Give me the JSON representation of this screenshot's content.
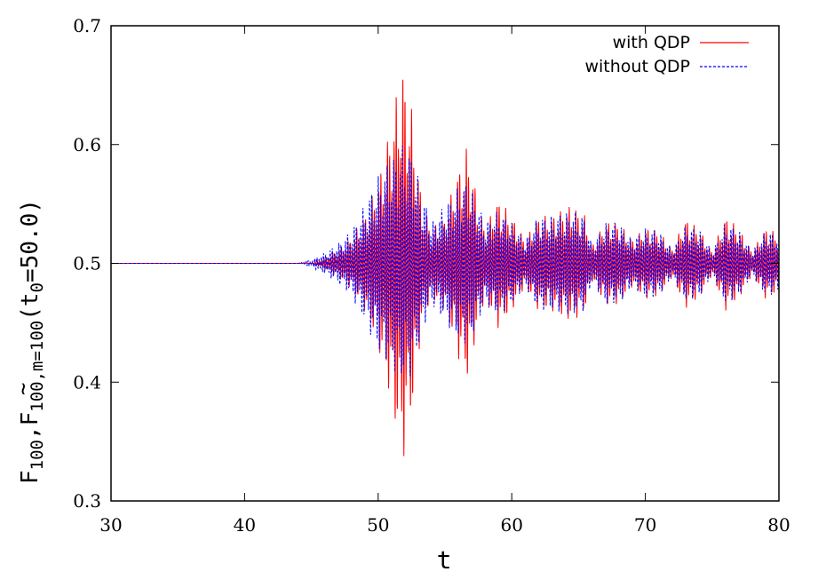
{
  "chart_data": {
    "type": "line",
    "title": "",
    "xlabel": "t",
    "ylabel_parts": {
      "main": "F",
      "sub1": "100",
      "comma": ",",
      "tilde": "~",
      "main2": "F",
      "sub2": "100,m=100",
      "paren_open": "(t",
      "sub3": "0",
      "rest": "=50.0)"
    },
    "xlim": [
      30,
      80
    ],
    "ylim": [
      0.3,
      0.7
    ],
    "x_ticks": [
      30,
      40,
      50,
      60,
      70,
      80
    ],
    "x_tick_labels": [
      "30",
      "40",
      "50",
      "60",
      "70",
      "80"
    ],
    "y_ticks": [
      0.3,
      0.4,
      0.5,
      0.6,
      0.7
    ],
    "y_tick_labels": [
      "0.3",
      "0.4",
      "0.5",
      "0.6",
      "0.7"
    ],
    "grid": false,
    "legend_position": "top-right",
    "series": [
      {
        "name": "with QDP",
        "color": "#ff0000",
        "style": "solid",
        "baseline": 0.5,
        "envelope": {
          "t": [
            30,
            45,
            46,
            47,
            48,
            49,
            50,
            51,
            51.8,
            52.5,
            53.3,
            54,
            55,
            56,
            56.7,
            57.5,
            58,
            59,
            60,
            61,
            62,
            63,
            64.5,
            65.5,
            66,
            67,
            68,
            69,
            70,
            71,
            72,
            73,
            74,
            75,
            76,
            77,
            78,
            79,
            80
          ],
          "amp": [
            0,
            0,
            0.005,
            0.012,
            0.022,
            0.04,
            0.07,
            0.12,
            0.17,
            0.13,
            0.05,
            0.03,
            0.04,
            0.08,
            0.1,
            0.05,
            0.03,
            0.055,
            0.04,
            0.02,
            0.04,
            0.04,
            0.05,
            0.04,
            0.015,
            0.035,
            0.035,
            0.02,
            0.03,
            0.028,
            0.012,
            0.038,
            0.03,
            0.01,
            0.04,
            0.03,
            0.01,
            0.03,
            0.025
          ]
        }
      },
      {
        "name": "without QDP",
        "color": "#0000ff",
        "style": "dashed",
        "baseline": 0.5,
        "envelope": {
          "t": [
            30,
            44,
            45,
            46,
            47,
            48,
            49,
            50,
            51,
            51.8,
            52.5,
            53.3,
            54,
            55,
            56,
            56.7,
            57.5,
            58,
            59,
            60,
            61,
            62,
            63,
            64.5,
            65.5,
            66,
            67,
            68,
            69,
            70,
            71,
            72,
            73,
            74,
            75,
            76,
            77,
            78,
            79,
            80
          ],
          "amp": [
            0,
            0,
            0.003,
            0.009,
            0.017,
            0.028,
            0.05,
            0.075,
            0.09,
            0.1,
            0.095,
            0.06,
            0.035,
            0.05,
            0.065,
            0.07,
            0.05,
            0.035,
            0.045,
            0.035,
            0.02,
            0.04,
            0.04,
            0.045,
            0.04,
            0.015,
            0.035,
            0.035,
            0.02,
            0.03,
            0.028,
            0.012,
            0.032,
            0.03,
            0.01,
            0.035,
            0.028,
            0.01,
            0.028,
            0.025
          ]
        }
      }
    ]
  }
}
